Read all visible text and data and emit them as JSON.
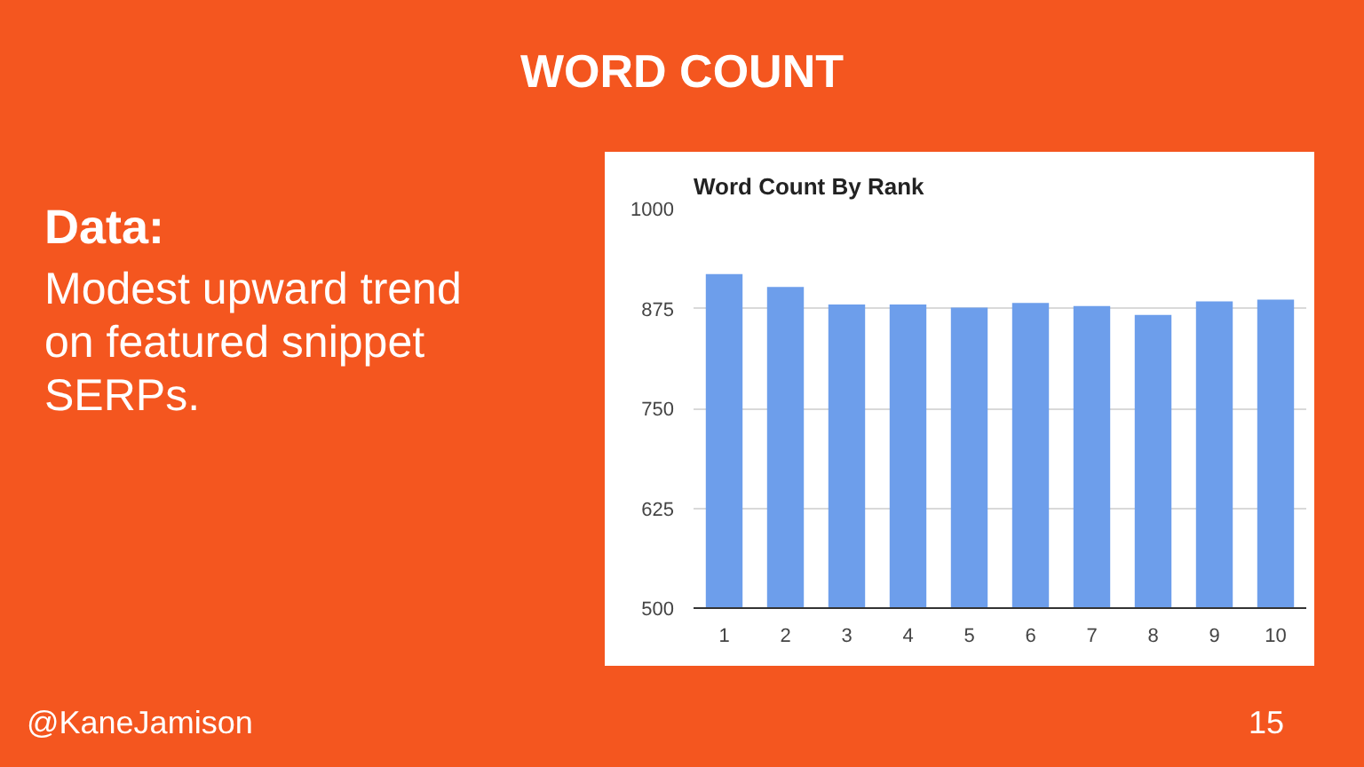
{
  "chart_data": {
    "type": "bar",
    "title": "Word Count By Rank",
    "categories": [
      "1",
      "2",
      "3",
      "4",
      "5",
      "6",
      "7",
      "8",
      "9",
      "10"
    ],
    "values": [
      918,
      902,
      880,
      880,
      876,
      882,
      878,
      867,
      884,
      886
    ],
    "color": "#6d9eeb",
    "ylim": [
      500,
      1000
    ],
    "yticks": [
      500,
      625,
      750,
      875,
      1000
    ],
    "grid": "y",
    "annotations": [
      "WORD COUNT",
      "Data:",
      "Modest upward trend on featured snippet SERPs.",
      "@KaneJamison",
      "15"
    ]
  }
}
